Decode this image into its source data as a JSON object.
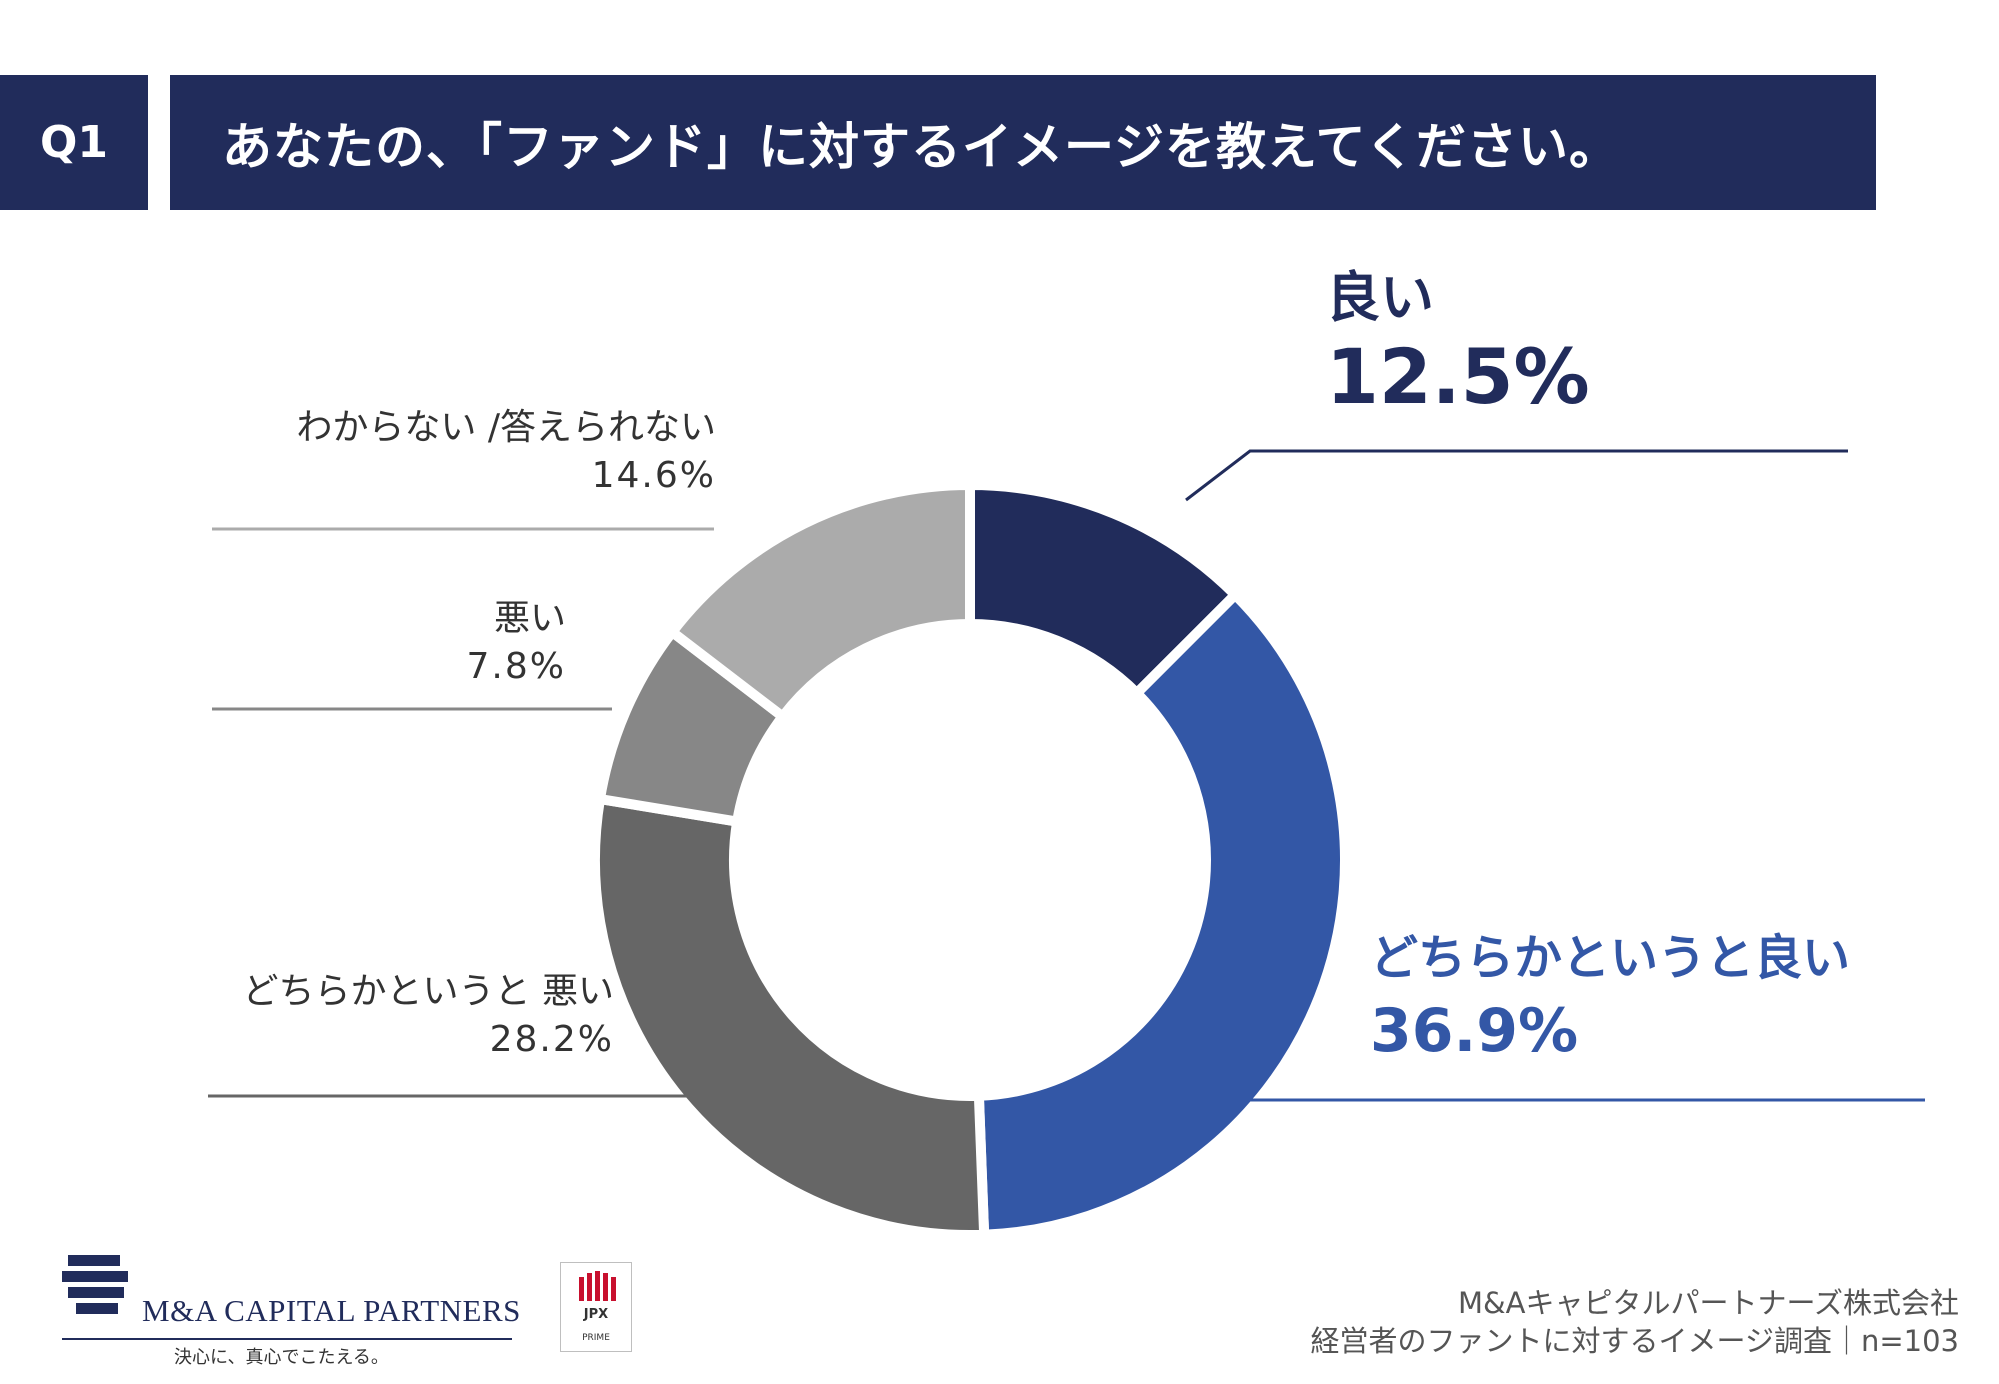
{
  "header": {
    "question_number": "Q1",
    "question_text": "あなたの、「ファンド」に対するイメージを教えてください。"
  },
  "chart_data": {
    "type": "pie",
    "donut": true,
    "start_angle": "top",
    "direction": "clockwise",
    "categories": [
      "良い",
      "どちらかというと良い",
      "どちらかというと 悪い",
      "悪い",
      "わからない /答えられない"
    ],
    "values": [
      12.5,
      36.9,
      28.2,
      7.8,
      14.6
    ],
    "value_labels": [
      "12.5%",
      "36.9%",
      "28.2%",
      "7.8%",
      "14.6%"
    ],
    "colors": [
      "#212c5b",
      "#3357a6",
      "#666666",
      "#878787",
      "#ababab"
    ]
  },
  "footer": {
    "logo_text": "M&A CAPITAL PARTNERS",
    "tagline": "決心に、真心でこたえる。",
    "badge_name": "JPX",
    "badge_sub": "PRIME",
    "credit_line1": "M&Aキャピタルパートナーズ株式会社",
    "credit_line2": "経営者のファントに対するイメージ調査｜n=103"
  }
}
